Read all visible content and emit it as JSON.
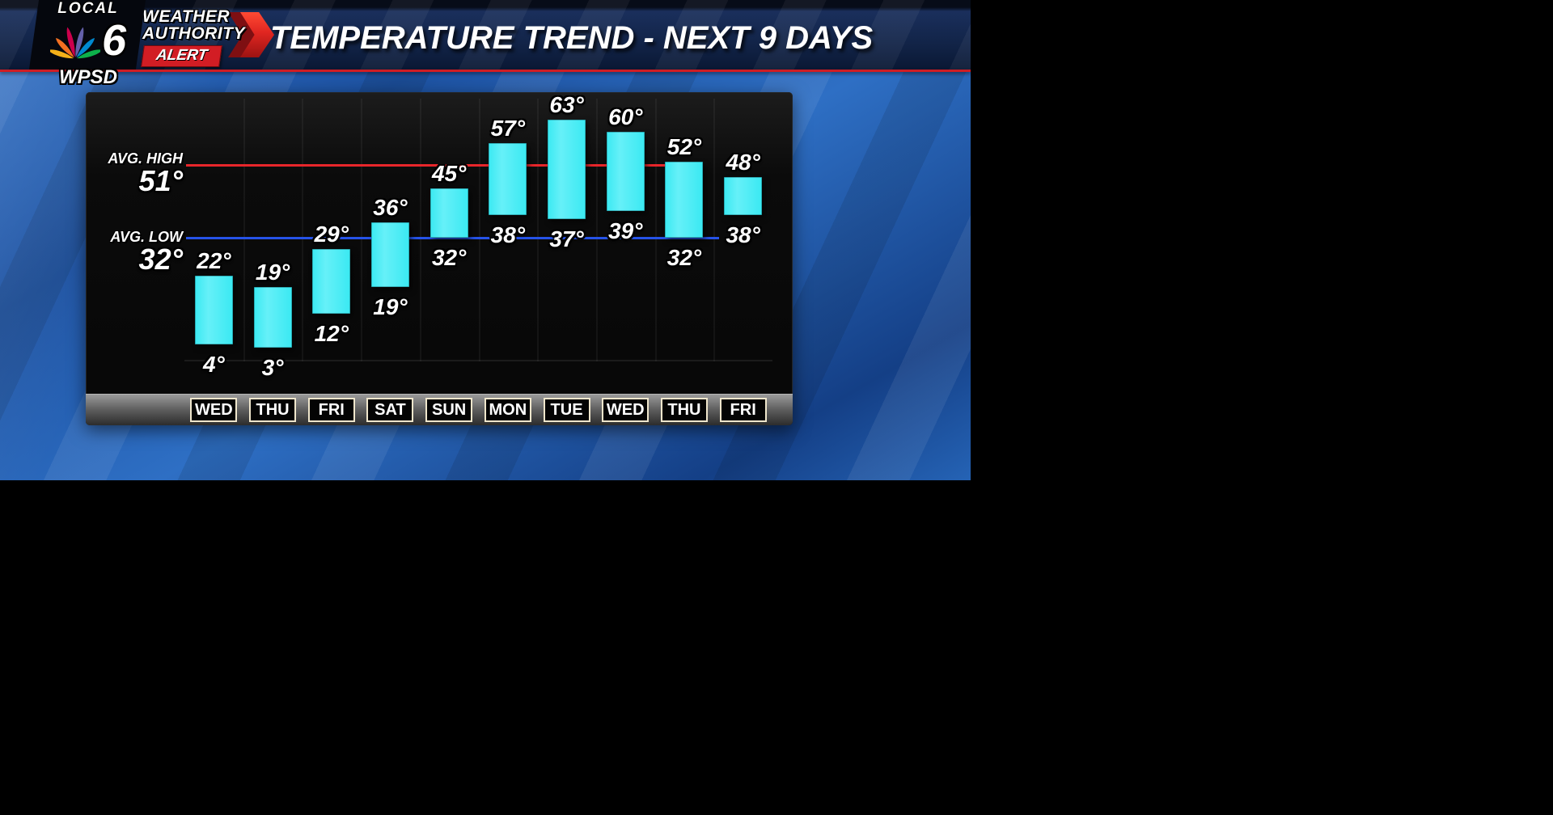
{
  "station": {
    "local": "LOCAL",
    "channel": "6",
    "callsign": "WPSD",
    "weather": "WEATHER",
    "authority": "AUTHORITY",
    "alert": "ALERT"
  },
  "header": {
    "title": "TEMPERATURE TREND - NEXT 9 DAYS"
  },
  "chart_data": {
    "type": "bar",
    "subtype": "floating-temperature-range",
    "title": "TEMPERATURE TREND - NEXT 9 DAYS",
    "categories": [
      "WED",
      "THU",
      "FRI",
      "SAT",
      "SUN",
      "MON",
      "TUE",
      "WED",
      "THU",
      "FRI"
    ],
    "series": [
      {
        "name": "High",
        "values": [
          22,
          19,
          29,
          36,
          45,
          57,
          63,
          60,
          52,
          48
        ]
      },
      {
        "name": "Low",
        "values": [
          4,
          3,
          12,
          19,
          32,
          38,
          37,
          39,
          32,
          38
        ]
      }
    ],
    "avg_high": {
      "label": "AVG. HIGH",
      "value": "51°",
      "numeric": 51,
      "color": "#e8262b"
    },
    "avg_low": {
      "label": "AVG. LOW",
      "value": "32°",
      "numeric": 32,
      "color": "#2653e8"
    },
    "bar_color": "#3ae9f2",
    "degree_suffix": "°",
    "ylim": [
      0,
      68
    ],
    "grid": false,
    "legend": false
  }
}
